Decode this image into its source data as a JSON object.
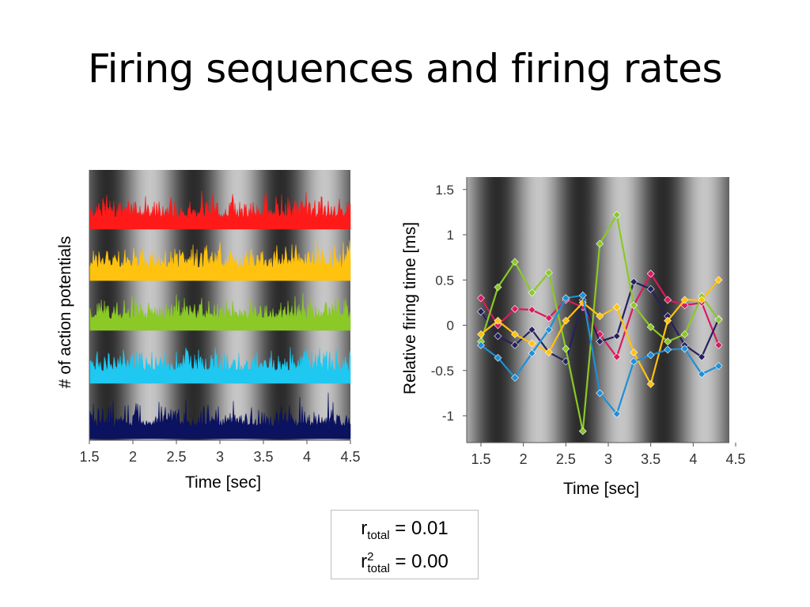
{
  "slide": {
    "title": "Firing sequences and firing rates"
  },
  "chart_data": [
    {
      "type": "line",
      "xlabel": "Time [sec]",
      "ylabel": "# of action potentials",
      "xlim": [
        1.5,
        4.5
      ],
      "x_ticks": [
        "1.5",
        "2",
        "2.5",
        "3",
        "3.5",
        "4",
        "4.5"
      ],
      "background": "sinusoidal grayscale stripes",
      "series_colors": [
        "#ff1a1a",
        "#ffc20e",
        "#8ac926",
        "#1ec8f0",
        "#0b1260"
      ]
    },
    {
      "type": "line",
      "xlabel": "Time [sec]",
      "ylabel": "Relative firing time [ms]",
      "xlim": [
        1.5,
        4.5
      ],
      "ylim": [
        -1.25,
        1.65
      ],
      "x_ticks": [
        "1.5",
        "2",
        "2.5",
        "3",
        "3.5",
        "4",
        "4.5"
      ],
      "y_ticks": [
        "1.5",
        "1",
        "0.5",
        "0",
        "-0.5",
        "-1"
      ],
      "background": "sinusoidal grayscale stripes",
      "x": [
        1.5,
        1.7,
        1.9,
        2.1,
        2.3,
        2.5,
        2.7,
        2.9,
        3.1,
        3.3,
        3.5,
        3.7,
        3.9,
        4.1,
        4.3
      ],
      "series": [
        {
          "color": "#d81b60",
          "values": [
            0.3,
            0.0,
            0.18,
            0.17,
            0.08,
            0.28,
            0.2,
            -0.1,
            -0.35,
            0.22,
            0.57,
            0.28,
            0.22,
            0.25,
            -0.22
          ]
        },
        {
          "color": "#26215f",
          "values": [
            0.15,
            -0.12,
            -0.22,
            -0.05,
            -0.3,
            -0.4,
            0.28,
            -0.18,
            -0.12,
            0.48,
            0.4,
            0.1,
            -0.22,
            -0.35,
            0.07
          ]
        },
        {
          "color": "#8ac926",
          "values": [
            -0.18,
            0.42,
            0.7,
            0.36,
            0.58,
            -0.26,
            -1.17,
            0.9,
            1.22,
            0.22,
            -0.02,
            -0.18,
            -0.1,
            0.32,
            0.06
          ]
        },
        {
          "color": "#ffc20e",
          "values": [
            -0.1,
            0.05,
            -0.1,
            -0.2,
            -0.3,
            0.05,
            0.25,
            0.1,
            0.2,
            -0.3,
            -0.65,
            0.05,
            0.28,
            0.28,
            0.5
          ]
        },
        {
          "color": "#1f8fd6",
          "values": [
            -0.22,
            -0.36,
            -0.58,
            -0.31,
            -0.05,
            0.3,
            0.33,
            -0.75,
            -0.98,
            -0.4,
            -0.33,
            -0.27,
            -0.26,
            -0.54,
            -0.45
          ]
        }
      ]
    }
  ],
  "stats": {
    "r_base": "r",
    "r_sub": "total",
    "r_value": " = 0.01",
    "r2_base": "r",
    "r2_sup": "2",
    "r2_sub": "total",
    "r2_value": " = 0.00"
  }
}
